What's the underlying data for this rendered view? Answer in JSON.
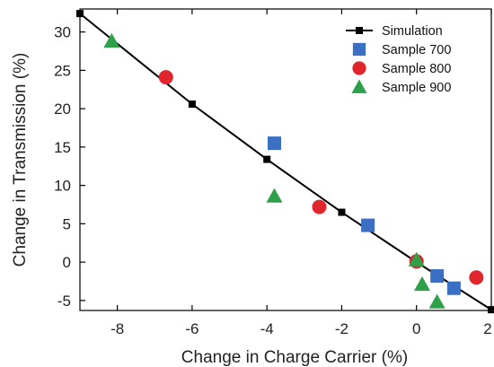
{
  "chart_data": {
    "type": "scatter",
    "title": "",
    "xlabel": "Change in Charge Carrier (%)",
    "ylabel": "Change in Transmission (%)",
    "xlim": [
      -9,
      2
    ],
    "ylim": [
      -6.3,
      33
    ],
    "xticks": [
      -8,
      -6,
      -4,
      -2,
      0,
      2
    ],
    "yticks": [
      -5,
      0,
      5,
      10,
      15,
      20,
      25,
      30
    ],
    "legend_position": "top-right",
    "grid": false,
    "series": [
      {
        "name": "Simulation",
        "marker": "small-square-line",
        "color": "#000000",
        "points": [
          [
            -9,
            32.4
          ],
          [
            -6,
            20.6
          ],
          [
            -4,
            13.4
          ],
          [
            -2,
            6.5
          ],
          [
            0,
            0
          ],
          [
            2,
            -6.2
          ]
        ]
      },
      {
        "name": "Sample 700",
        "marker": "square",
        "color": "#3b6fc4",
        "points": [
          [
            -3.8,
            15.5
          ],
          [
            -1.3,
            4.8
          ],
          [
            0.55,
            -1.8
          ],
          [
            1.0,
            -3.4
          ]
        ]
      },
      {
        "name": "Sample 800",
        "marker": "circle",
        "color": "#e0262c",
        "points": [
          [
            -6.7,
            24.1
          ],
          [
            -2.6,
            7.2
          ],
          [
            0.0,
            0.1
          ],
          [
            1.6,
            -2.0
          ]
        ]
      },
      {
        "name": "Sample 900",
        "marker": "triangle",
        "color": "#2ea04a",
        "points": [
          [
            -8.15,
            28.8
          ],
          [
            -3.8,
            8.6
          ],
          [
            0.0,
            0.3
          ],
          [
            0.15,
            -2.9
          ],
          [
            0.55,
            -5.2
          ]
        ]
      }
    ]
  }
}
